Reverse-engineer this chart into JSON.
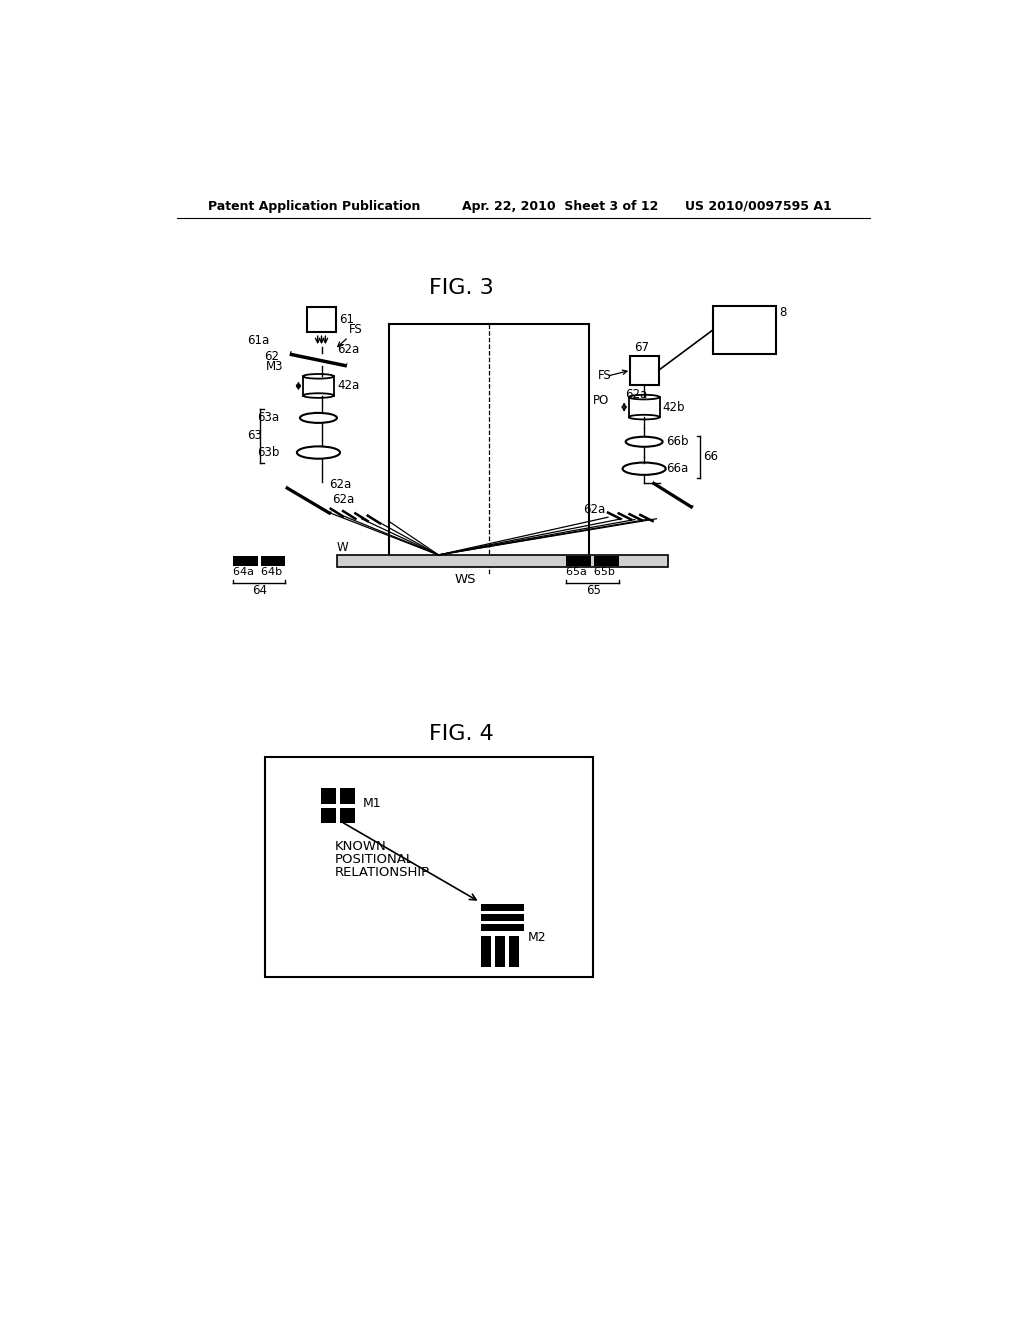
{
  "background_color": "#ffffff",
  "header_left": "Patent Application Publication",
  "header_mid": "Apr. 22, 2010  Sheet 3 of 12",
  "header_right": "US 2010/0097595 A1",
  "fig3_title": "FIG. 3",
  "fig4_title": "FIG. 4",
  "text_color": "#000000"
}
